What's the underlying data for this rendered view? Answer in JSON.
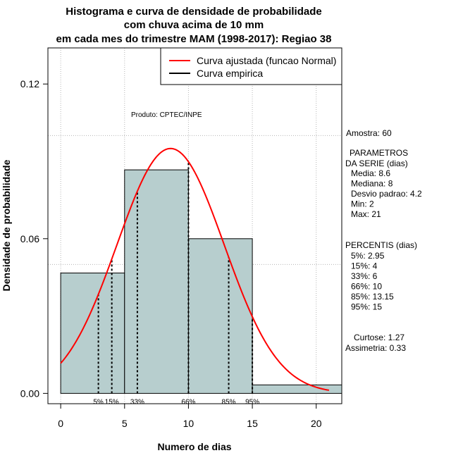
{
  "chart_data": {
    "type": "bar",
    "title_lines": [
      "Histograma e curva de densidade de probabilidade",
      "com chuva acima de 10 mm",
      "em cada mes do trimestre MAM (1998-2017): Regiao 38"
    ],
    "xlabel": "Numero de dias",
    "ylabel": "Densidade de probabilidade",
    "xlim": [
      -1,
      22
    ],
    "ylim": [
      -0.004,
      0.134
    ],
    "x_ticks": [
      {
        "value": 0,
        "label": "0"
      },
      {
        "value": 5,
        "label": "5"
      },
      {
        "value": 10,
        "label": "10"
      },
      {
        "value": 15,
        "label": "15"
      },
      {
        "value": 20,
        "label": "20"
      }
    ],
    "y_ticks": [
      {
        "value": 0.0,
        "label": "0.00"
      },
      {
        "value": 0.06,
        "label": "0.06"
      },
      {
        "value": 0.12,
        "label": "0.12"
      }
    ],
    "grid_x": [
      0,
      5,
      10,
      15,
      20
    ],
    "grid_y": [
      0.05,
      0.1
    ],
    "bins": [
      {
        "x0": 0,
        "x1": 5,
        "density": 0.0467
      },
      {
        "x0": 5,
        "x1": 10,
        "density": 0.0867
      },
      {
        "x0": 10,
        "x1": 15,
        "density": 0.06
      },
      {
        "x0": 15,
        "x1": 22,
        "density": 0.0033
      }
    ],
    "normal_fit": {
      "mean": 8.6,
      "sd": 4.2,
      "x_range": [
        0,
        21
      ]
    },
    "percentile_lines": [
      {
        "x": 2.95,
        "label": "5%"
      },
      {
        "x": 4,
        "label": "15%"
      },
      {
        "x": 6,
        "label": "33%"
      },
      {
        "x": 10,
        "label": "66%"
      },
      {
        "x": 13.15,
        "label": "85%"
      },
      {
        "x": 15,
        "label": "95%"
      }
    ],
    "legend": {
      "position": "top-right",
      "items": [
        {
          "label": "Curva ajustada (funcao Normal)",
          "color": "#ff0000"
        },
        {
          "label": "Curva empirica",
          "color": "#000000"
        }
      ]
    },
    "product_label": "Produto: CPTEC/INPE",
    "bar_color": "#b7cece",
    "curve_color": "#ff0000"
  },
  "stats": {
    "sample": "Amostra: 60",
    "params_title_1": "PARAMETROS",
    "params_title_2": "DA SERIE (dias)",
    "params": [
      "Media: 8.6",
      "Mediana: 8",
      "Desvio padrao: 4.2",
      "Min: 2",
      "Max: 21"
    ],
    "percentis_title": "PERCENTIS (dias)",
    "percentis": [
      "5%: 2.95",
      "15%: 4",
      "33%: 6",
      "66%: 10",
      "85%: 13.15",
      "95%: 15"
    ],
    "curtose": "Curtose: 1.27",
    "assimetria": "Assimetria: 0.33"
  }
}
